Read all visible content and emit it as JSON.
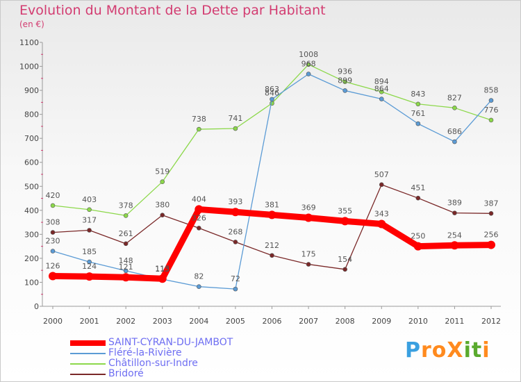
{
  "header": {
    "title": "Evolution du Montant de la Dette par Habitant",
    "subtitle": "(en €)"
  },
  "logo": {
    "text": "ProXiti",
    "letters": [
      "P",
      "r",
      "o",
      "X",
      "i",
      "t",
      "i"
    ],
    "colors": [
      "#3aa0e0",
      "#ff8a1e",
      "#ff8a1e",
      "#ff8a1e",
      "#5aaa2e",
      "#5aaa2e",
      "#ff8a1e"
    ]
  },
  "chart_data": {
    "type": "line",
    "title": "Evolution du Montant de la Dette par Habitant",
    "subtitle": "(en €)",
    "xlabel": "",
    "ylabel": "",
    "x": [
      "2000",
      "2001",
      "2002",
      "2003",
      "2004",
      "2005",
      "2006",
      "2007",
      "2008",
      "2009",
      "2010",
      "2011",
      "2012"
    ],
    "ylim": [
      0,
      1100
    ],
    "yticks": [
      "0",
      "100",
      "200",
      "300",
      "400",
      "500",
      "600",
      "700",
      "800",
      "900",
      "1000",
      "1100"
    ],
    "grid": false,
    "legend_position": "bottom-left",
    "series": [
      {
        "name": "SAINT-CYRAN-DU-JAMBOT",
        "color": "#ff0000",
        "values": [
          126,
          124,
          121,
          115,
          404,
          393,
          381,
          369,
          355,
          343,
          250,
          254,
          256
        ],
        "labels": [
          "126",
          "124",
          "121",
          "115",
          "404",
          "393",
          "381",
          "369",
          "355",
          "343",
          "250",
          "254",
          "256"
        ]
      },
      {
        "name": "Fléré-la-Rivière",
        "color": "#5b9bd5",
        "values": [
          230,
          185,
          148,
          113,
          82,
          72,
          863,
          968,
          899,
          864,
          761,
          686,
          858
        ],
        "labels": [
          "230",
          "185",
          "148",
          "113",
          "82",
          "72",
          "863",
          "968",
          "899",
          "864",
          "761",
          "686",
          "858"
        ]
      },
      {
        "name": "Châtillon-sur-Indre",
        "color": "#8cd84a",
        "values": [
          420,
          403,
          378,
          519,
          738,
          741,
          846,
          1008,
          936,
          894,
          843,
          827,
          776
        ],
        "labels": [
          "420",
          "403",
          "378",
          "519",
          "738",
          "741",
          "846",
          "1008",
          "936",
          "894",
          "843",
          "827",
          "776"
        ]
      },
      {
        "name": "Bridoré",
        "color": "#7a2828",
        "values": [
          308,
          317,
          261,
          380,
          326,
          268,
          212,
          175,
          154,
          507,
          451,
          389,
          387
        ],
        "labels": [
          "308",
          "317",
          "261",
          "380",
          "326",
          "268",
          "212",
          "175",
          "154",
          "507",
          "451",
          "389",
          "387"
        ]
      }
    ]
  }
}
